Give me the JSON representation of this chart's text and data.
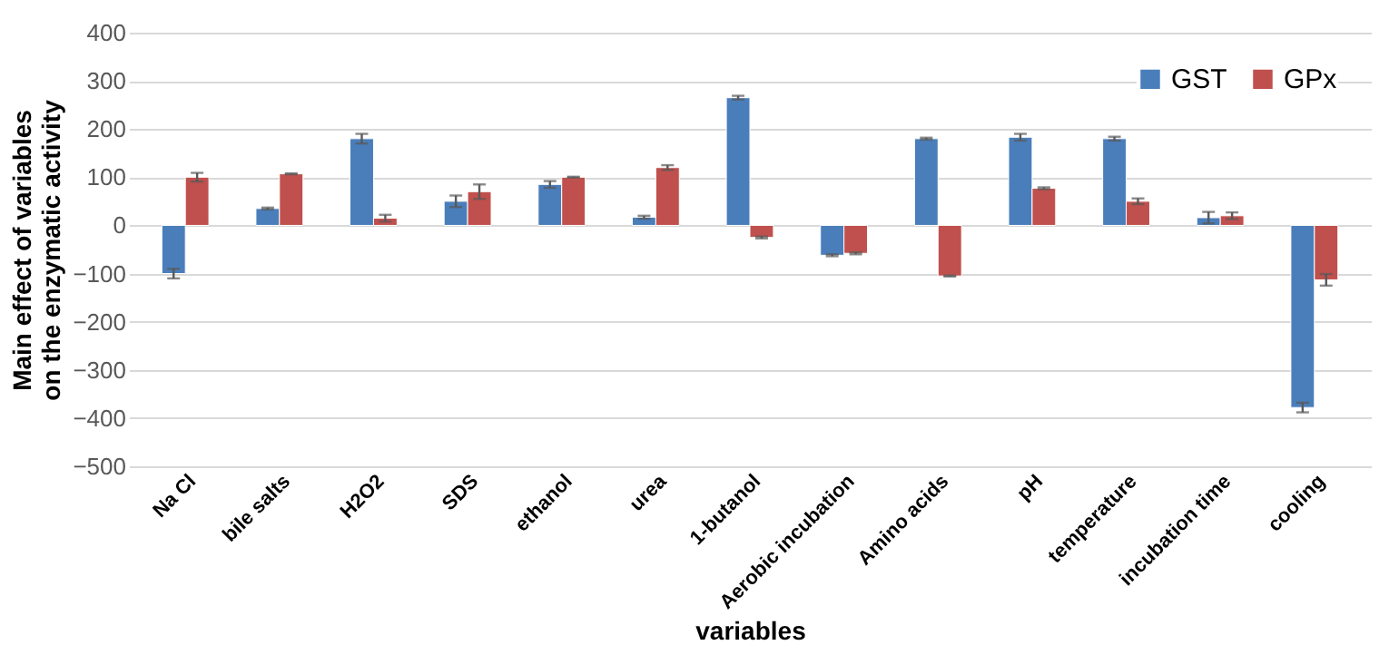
{
  "chart_data": {
    "type": "bar",
    "xlabel": "variables",
    "ylabel": "Main effect of variables on the enzymatic activity",
    "categories": [
      "Na Cl",
      "bile salts",
      "H2O2",
      "SDS",
      "ethanol",
      "urea",
      "1-butanol",
      "Aerobic incubation",
      "Amino acids",
      "pH",
      "temperature",
      "incubation time",
      "cooling"
    ],
    "series": [
      {
        "name": "GST",
        "color": "#4a7ebb",
        "values": [
          -100,
          35,
          180,
          50,
          85,
          17,
          265,
          -62,
          180,
          183,
          180,
          16,
          -378
        ],
        "errors": [
          10,
          2,
          10,
          12,
          7,
          3,
          4,
          2,
          2,
          7,
          4,
          12,
          10
        ]
      },
      {
        "name": "GPx",
        "color": "#c0504d",
        "values": [
          100,
          107,
          15,
          70,
          100,
          120,
          -25,
          -58,
          -105,
          77,
          50,
          20,
          -113
        ],
        "errors": [
          9,
          1,
          7,
          15,
          1,
          5,
          2,
          2,
          1,
          2,
          6,
          7,
          12
        ]
      }
    ],
    "ylim": [
      -500,
      400
    ],
    "yticks": [
      -500,
      -400,
      -300,
      -200,
      -100,
      0,
      100,
      200,
      300,
      400
    ],
    "grid": "y",
    "legend": "top right"
  }
}
